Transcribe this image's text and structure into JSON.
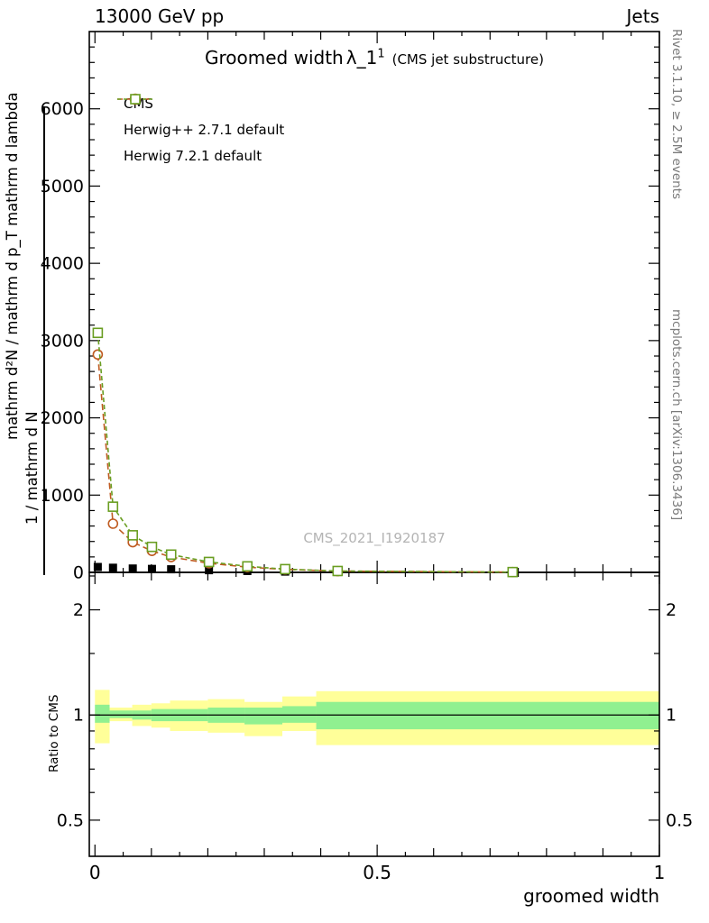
{
  "header": {
    "left_label": "13000 GeV pp",
    "right_label": "Jets"
  },
  "plot_title": {
    "text": "Groomed width",
    "lambda": "λ_1",
    "superscript": "1",
    "context": "(CMS jet substructure)"
  },
  "watermark": "CMS_2021_I1920187",
  "side_notes": {
    "rivet": "Rivet 3.1.10, ≥ 2.5M events",
    "mcplots": "mcplots.cern.ch [arXiv:1306.3436]"
  },
  "y_axis_label": {
    "fragment_long": "mathrm d²N / mathrm d p_T mathrm d lambda",
    "fragment_short": "1 / mathrm d N"
  },
  "axes": {
    "x_title": "groomed width",
    "ratio_title": "Ratio to CMS"
  },
  "legend": {
    "entries": [
      {
        "label": "CMS",
        "marker": "filled-square",
        "color": "#000000"
      },
      {
        "label": "Herwig++ 2.7.1 default",
        "marker": "open-circle",
        "color": "#bf5b21"
      },
      {
        "label": "Herwig 7.2.1 default",
        "marker": "open-square",
        "color": "#6a9e22"
      }
    ]
  },
  "chart_data": {
    "type": "line",
    "title": "Groomed width λ_1^1 (CMS jet substructure)",
    "xlabel": "groomed width",
    "xlim": [
      0,
      1
    ],
    "xticks": [
      0,
      0.5,
      1
    ],
    "grid": false,
    "legend_position": "upper-left",
    "main_panel": {
      "ylim": [
        0,
        7000
      ],
      "yticks": [
        0,
        1000,
        2000,
        3000,
        4000,
        5000,
        6000
      ]
    },
    "x": [
      0.005,
      0.032,
      0.067,
      0.101,
      0.135,
      0.202,
      0.27,
      0.337,
      0.43,
      0.74
    ],
    "series": [
      {
        "name": "CMS",
        "style": "points",
        "marker": "filled-square",
        "color": "#000000",
        "values": [
          70,
          60,
          50,
          45,
          40,
          28,
          18,
          10,
          5,
          2
        ]
      },
      {
        "name": "Herwig++ 2.7.1 default",
        "style": "dashed-line",
        "marker": "open-circle",
        "color": "#bf5b21",
        "values": [
          2820,
          630,
          390,
          278,
          198,
          118,
          68,
          38,
          16,
          4
        ]
      },
      {
        "name": "Herwig 7.2.1 default",
        "style": "dashed-line",
        "marker": "open-square",
        "color": "#6a9e22",
        "values": [
          3100,
          850,
          480,
          330,
          230,
          135,
          78,
          42,
          18,
          4
        ]
      }
    ],
    "ratio_panel": {
      "ylabel": "Ratio to CMS",
      "scale": "log",
      "ylim": [
        0.394,
        2.56
      ],
      "yticks": [
        0.5,
        1,
        2
      ],
      "yticks_minor": [
        0.6,
        0.7,
        0.8,
        0.9,
        1.5,
        2.5
      ],
      "reference_line": 1,
      "band_colors": {
        "outer": "#ffff99",
        "inner": "#90f090"
      },
      "bands_outer": [
        {
          "x0": 0.0,
          "x1": 0.026,
          "lo": 0.83,
          "hi": 1.18
        },
        {
          "x0": 0.026,
          "x1": 0.066,
          "lo": 0.96,
          "hi": 1.05
        },
        {
          "x0": 0.066,
          "x1": 0.1,
          "lo": 0.93,
          "hi": 1.07
        },
        {
          "x0": 0.1,
          "x1": 0.133,
          "lo": 0.92,
          "hi": 1.08
        },
        {
          "x0": 0.133,
          "x1": 0.2,
          "lo": 0.9,
          "hi": 1.1
        },
        {
          "x0": 0.2,
          "x1": 0.265,
          "lo": 0.89,
          "hi": 1.11
        },
        {
          "x0": 0.265,
          "x1": 0.332,
          "lo": 0.87,
          "hi": 1.09
        },
        {
          "x0": 0.332,
          "x1": 0.392,
          "lo": 0.9,
          "hi": 1.13
        },
        {
          "x0": 0.392,
          "x1": 1.0,
          "lo": 0.82,
          "hi": 1.17
        }
      ],
      "bands_inner": [
        {
          "x0": 0.0,
          "x1": 0.026,
          "lo": 0.95,
          "hi": 1.07
        },
        {
          "x0": 0.026,
          "x1": 0.066,
          "lo": 0.98,
          "hi": 1.03
        },
        {
          "x0": 0.066,
          "x1": 0.1,
          "lo": 0.97,
          "hi": 1.03
        },
        {
          "x0": 0.1,
          "x1": 0.133,
          "lo": 0.96,
          "hi": 1.04
        },
        {
          "x0": 0.133,
          "x1": 0.2,
          "lo": 0.96,
          "hi": 1.04
        },
        {
          "x0": 0.2,
          "x1": 0.265,
          "lo": 0.95,
          "hi": 1.05
        },
        {
          "x0": 0.265,
          "x1": 0.332,
          "lo": 0.94,
          "hi": 1.05
        },
        {
          "x0": 0.332,
          "x1": 0.392,
          "lo": 0.95,
          "hi": 1.06
        },
        {
          "x0": 0.392,
          "x1": 1.0,
          "lo": 0.91,
          "hi": 1.09
        }
      ]
    }
  }
}
